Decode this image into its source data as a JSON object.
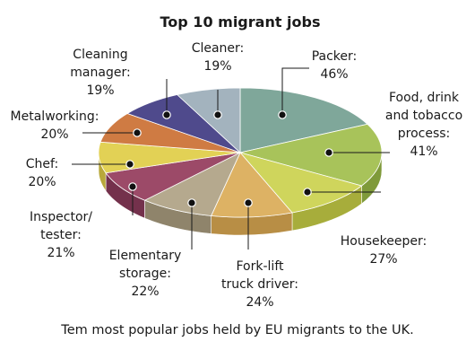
{
  "chart_data": {
    "type": "pie",
    "title": "Top 10 migrant jobs",
    "caption": "Tem most popular jobs held by EU migrants to the UK.",
    "slices": [
      {
        "label": "Packer:",
        "value_label": "46%",
        "value": 46,
        "color": "#7fa79a",
        "side": "#5f8a7d"
      },
      {
        "label": "Food, drink and tobacco process:",
        "value_label": "41%",
        "value": 41,
        "color": "#a8c35a",
        "side": "#7f9a3a"
      },
      {
        "label": "Housekeeper:",
        "value_label": "27%",
        "value": 27,
        "color": "#cfd55c",
        "side": "#a7ad3b"
      },
      {
        "label": "Fork-lift truck driver:",
        "value_label": "24%",
        "value": 24,
        "color": "#ddb264",
        "side": "#b88e45"
      },
      {
        "label": "Elementary storage:",
        "value_label": "22%",
        "value": 22,
        "color": "#b5a98e",
        "side": "#8f846b"
      },
      {
        "label": "Inspector/ tester:",
        "value_label": "21%",
        "value": 21,
        "color": "#9c4a68",
        "side": "#74314c"
      },
      {
        "label": "Chef:",
        "value_label": "20%",
        "value": 20,
        "color": "#e2d155",
        "side": "#b8a83a"
      },
      {
        "label": "Metalworking:",
        "value_label": "20%",
        "value": 20,
        "color": "#cf7b43",
        "side": "#a55a2b"
      },
      {
        "label": "Cleaning manager:",
        "value_label": "19%",
        "value": 19,
        "color": "#4f4a8c",
        "side": "#37336a"
      },
      {
        "label": "Cleaner:",
        "value_label": "19%",
        "value": 19,
        "color": "#a3b3be",
        "side": "#7e8e99"
      }
    ]
  }
}
